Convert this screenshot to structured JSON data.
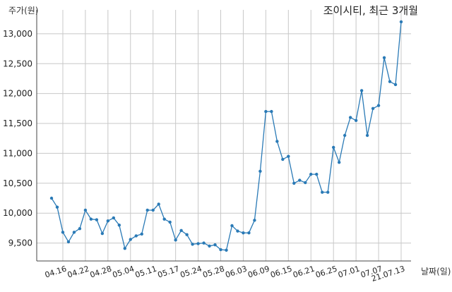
{
  "chart_data": {
    "type": "line",
    "title": "조이시티, 최근 3개월",
    "xlabel": "날짜(일)",
    "ylabel": "주가(원)",
    "ylim": [
      9200,
      13400
    ],
    "yticks": [
      9500,
      10000,
      10500,
      11000,
      11500,
      12000,
      12500,
      13000
    ],
    "ytick_labels": [
      "9,500",
      "10,000",
      "10,500",
      "11,000",
      "11,500",
      "12,000",
      "12,500",
      "13,000"
    ],
    "xtick_labels": [
      "04.16",
      "04.22",
      "04.28",
      "05.04",
      "05.11",
      "05.17",
      "05.24",
      "05.28",
      "06.03",
      "06.09",
      "06.15",
      "06.21",
      "06.25",
      "07.01",
      "07.07",
      "21.07.13"
    ],
    "xtick_indices": [
      2,
      6,
      10,
      14,
      18,
      22,
      26,
      30,
      34,
      38,
      42,
      46,
      50,
      54,
      58,
      62
    ],
    "grid": true,
    "color": "#2a7ab6",
    "series": [
      {
        "values": [
          10250,
          10100,
          9680,
          9520,
          9680,
          9740,
          10050,
          9900,
          9890,
          9660,
          9870,
          9920,
          9800,
          9410,
          9560,
          9620,
          9650,
          10050,
          10050,
          10150,
          9900,
          9850,
          9550,
          9710,
          9640,
          9480,
          9490,
          9500,
          9450,
          9470,
          9390,
          9380,
          9790,
          9700,
          9670,
          9670,
          9880,
          10700,
          11700,
          11700,
          11200,
          10900,
          10950,
          10500,
          10550,
          10510,
          10650,
          10650,
          10350,
          10350,
          11100,
          10850,
          11300,
          11600,
          11550,
          12050,
          11300,
          11750,
          11800,
          12600,
          12200,
          12150,
          13200
        ]
      }
    ]
  }
}
